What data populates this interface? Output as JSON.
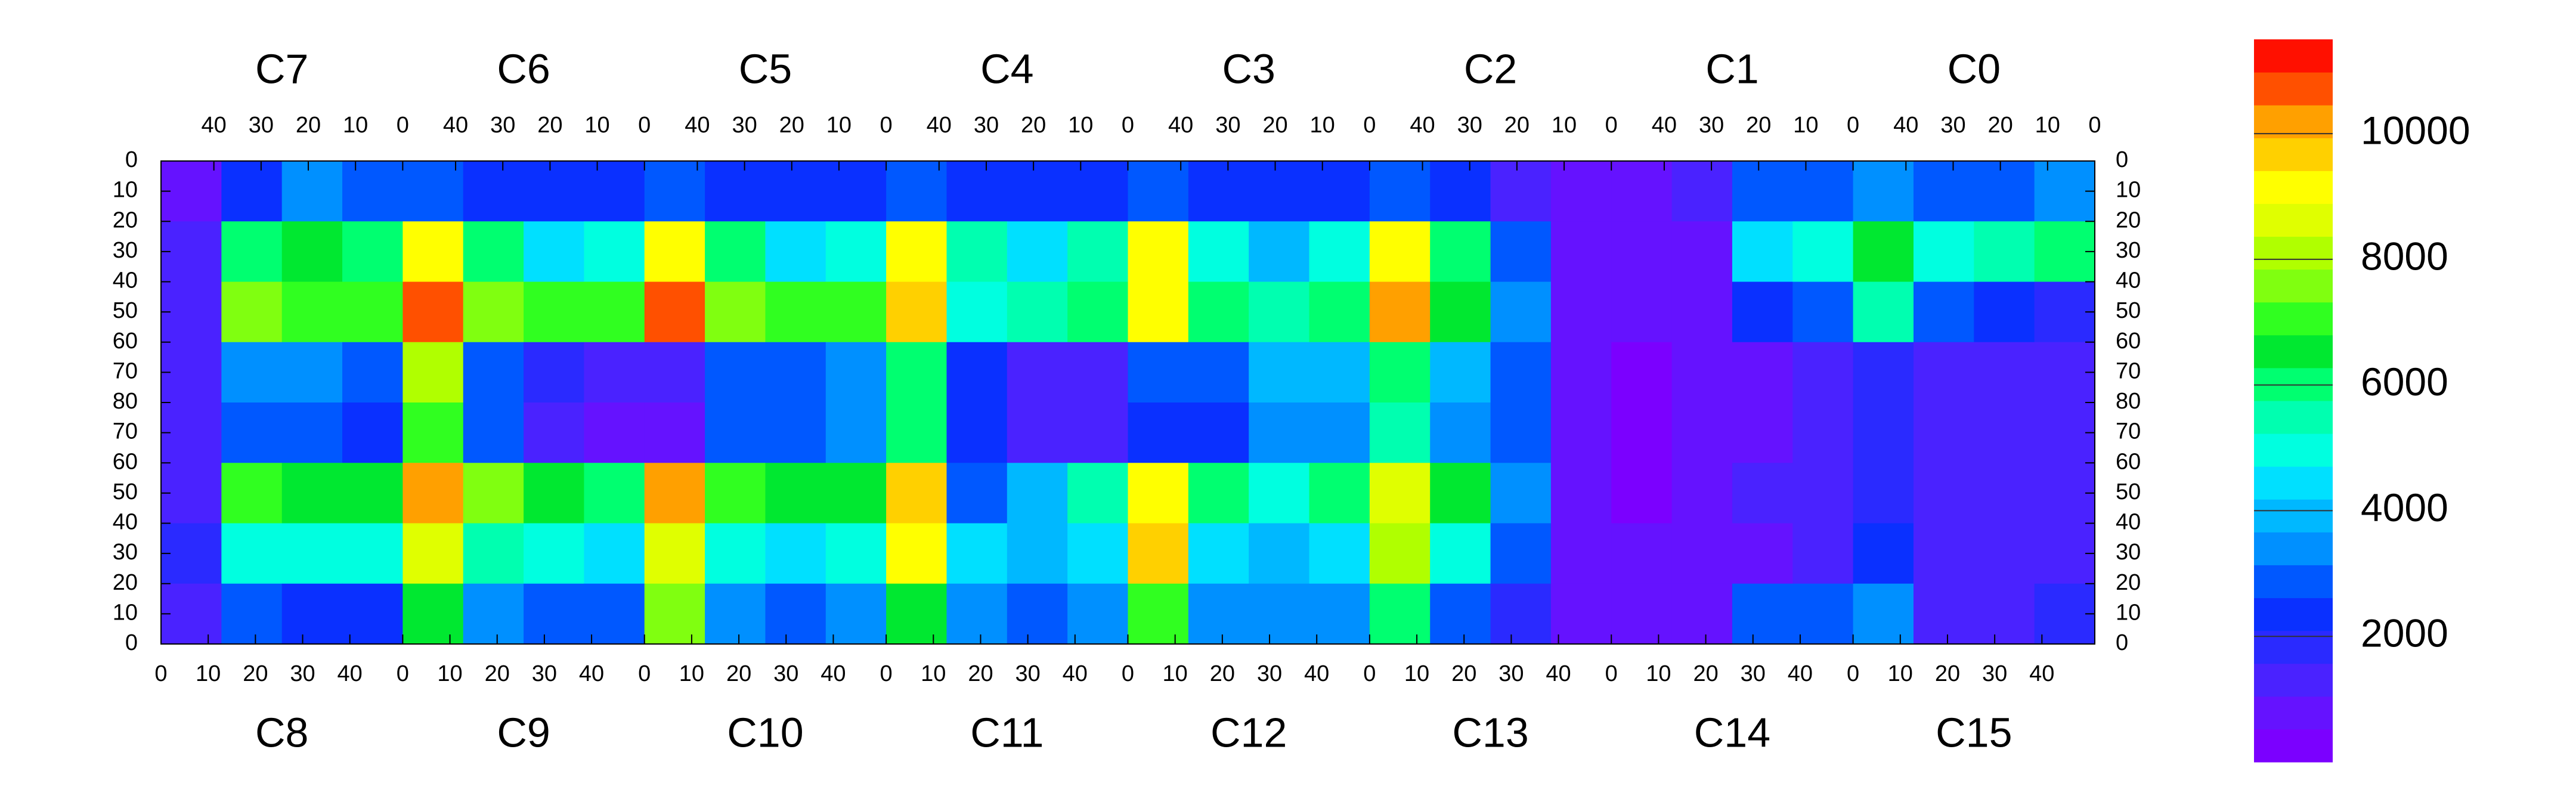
{
  "chart_data": {
    "type": "heatmap",
    "sectors": [
      {
        "top": "C7",
        "bottom": "C8"
      },
      {
        "top": "C6",
        "bottom": "C9"
      },
      {
        "top": "C5",
        "bottom": "C10"
      },
      {
        "top": "C4",
        "bottom": "C11"
      },
      {
        "top": "C3",
        "bottom": "C12"
      },
      {
        "top": "C2",
        "bottom": "C13"
      },
      {
        "top": "C1",
        "bottom": "C14"
      },
      {
        "top": "C0",
        "bottom": "C15"
      }
    ],
    "xlim": [
      0,
      51.2
    ],
    "xticks": [
      0,
      10,
      20,
      30,
      40
    ],
    "x2lim": [
      51.2,
      0
    ],
    "x2ticks": [
      40,
      30,
      20,
      10,
      0
    ],
    "ylim": [
      0,
      160
    ],
    "yticks": [
      0,
      10,
      20,
      30,
      40,
      50,
      60,
      70,
      80,
      {
        "value": 90,
        "label": "70"
      },
      {
        "value": 100,
        "label": "60"
      },
      {
        "value": 110,
        "label": "50"
      },
      {
        "value": 120,
        "label": "40"
      },
      {
        "value": 130,
        "label": "30"
      },
      {
        "value": 140,
        "label": "20"
      },
      {
        "value": 150,
        "label": "10"
      },
      {
        "value": 160,
        "label": "0"
      }
    ],
    "zlim": [
      0,
      11500
    ],
    "zticks": [
      2000,
      4000,
      6000,
      8000,
      10000
    ],
    "colors": [
      "#7b00ff",
      "#6512ff",
      "#4a22ff",
      "#2a2aff",
      "#0a30ff",
      "#0058ff",
      "#0090ff",
      "#00b8ff",
      "#00e0ff",
      "#00ffe0",
      "#00ffb0",
      "#00ff70",
      "#00e830",
      "#30ff20",
      "#80ff10",
      "#b0ff00",
      "#e0ff00",
      "#ffff00",
      "#ffd000",
      "#ffa000",
      "#ff5000",
      "#ff1000"
    ],
    "z": [
      [
        800,
        2500,
        3500,
        3000,
        3000,
        2500,
        2500,
        2500,
        3000,
        2500,
        2500,
        2500,
        3000,
        2500,
        2500,
        2500,
        3000,
        2500,
        2500,
        2500,
        3000,
        2500,
        1500,
        800,
        600,
        1500,
        3000,
        3000,
        3500,
        3000,
        3000,
        3500
      ],
      [
        1500,
        6000,
        6500,
        6000,
        9000,
        6000,
        4500,
        5000,
        9000,
        6000,
        4500,
        5000,
        9000,
        5500,
        4500,
        5500,
        9000,
        5000,
        4000,
        5000,
        9000,
        6000,
        3000,
        600,
        600,
        800,
        4500,
        5000,
        6500,
        5000,
        5500,
        6000
      ],
      [
        1500,
        7500,
        7000,
        7000,
        10500,
        7500,
        7000,
        7000,
        10500,
        7500,
        7000,
        7000,
        9500,
        5000,
        5500,
        6000,
        9000,
        6000,
        5500,
        6000,
        10000,
        6500,
        3500,
        600,
        600,
        600,
        2500,
        3000,
        5500,
        3000,
        2500,
        2000
      ],
      [
        1500,
        3500,
        3500,
        3000,
        8000,
        3000,
        2000,
        1500,
        1500,
        3000,
        3000,
        3500,
        6000,
        2500,
        1500,
        1500,
        3000,
        3000,
        4000,
        4000,
        6000,
        4000,
        3000,
        600,
        500,
        600,
        1000,
        1500,
        2000,
        1500,
        1500,
        1500
      ],
      [
        1500,
        3000,
        3000,
        2500,
        7000,
        3000,
        1500,
        1000,
        1000,
        3000,
        3000,
        3500,
        6000,
        2500,
        1500,
        1200,
        2500,
        2500,
        3500,
        3500,
        5500,
        3500,
        3000,
        600,
        500,
        600,
        1000,
        1500,
        2000,
        1500,
        1500,
        1500
      ],
      [
        1500,
        7000,
        6500,
        6500,
        10000,
        7500,
        6500,
        6000,
        10000,
        7000,
        6500,
        6500,
        9500,
        3000,
        4000,
        5500,
        9000,
        6000,
        5000,
        6000,
        8500,
        6500,
        3500,
        600,
        500,
        600,
        1200,
        1500,
        2000,
        1500,
        1500,
        1500
      ],
      [
        2000,
        5000,
        5000,
        5000,
        8500,
        5500,
        5000,
        4500,
        8500,
        5000,
        4500,
        5000,
        9000,
        4500,
        4000,
        4500,
        9500,
        4500,
        4000,
        4500,
        8000,
        5000,
        3000,
        600,
        600,
        600,
        1000,
        1500,
        2500,
        1500,
        1500,
        1500
      ],
      [
        1500,
        3000,
        2500,
        2500,
        6500,
        3500,
        3000,
        3000,
        7500,
        3500,
        3000,
        3500,
        6500,
        3500,
        3000,
        3500,
        7000,
        3500,
        3500,
        3500,
        6000,
        3000,
        2000,
        600,
        600,
        800,
        3000,
        3000,
        3500,
        1500,
        1500,
        2000
      ]
    ]
  }
}
